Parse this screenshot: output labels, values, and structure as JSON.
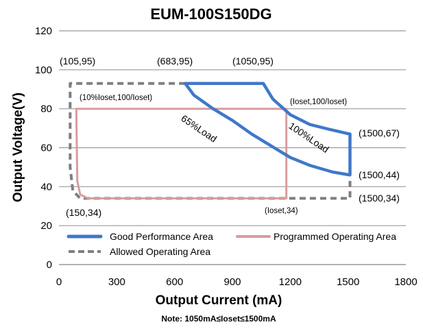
{
  "chart_data": {
    "type": "line",
    "title": "EUM-100S150DG",
    "xlabel": "Output Current (mA)",
    "ylabel": "Output Voltage(V)",
    "xlim": [
      0,
      1800
    ],
    "ylim": [
      0,
      120
    ],
    "x_ticks": [
      "0",
      "300",
      "600",
      "900",
      "1200",
      "1500",
      "1800"
    ],
    "y_ticks": [
      "0",
      "20",
      "40",
      "60",
      "80",
      "100",
      "120"
    ],
    "grid": "horizontal",
    "legend_placement": "bottom",
    "series": [
      {
        "name": "Good Performance Area",
        "color": "#3f78c9",
        "style": "solid",
        "points": [
          [
            655,
            93
          ],
          [
            1060,
            93
          ],
          [
            1110,
            85
          ],
          [
            1200,
            77
          ],
          [
            1300,
            72
          ],
          [
            1400,
            69.5
          ],
          [
            1510,
            67
          ],
          [
            1510,
            46
          ],
          [
            1420,
            47.5
          ],
          [
            1300,
            51
          ],
          [
            1200,
            55
          ],
          [
            1100,
            61
          ],
          [
            1000,
            67
          ],
          [
            900,
            74
          ],
          [
            800,
            80
          ],
          [
            700,
            87
          ],
          [
            655,
            93
          ]
        ]
      },
      {
        "name": "Programmed Operating Area",
        "color": "#d99c9c",
        "style": "solid",
        "points": [
          [
            90,
            80
          ],
          [
            1180,
            80
          ],
          [
            1180,
            34
          ],
          [
            150,
            34
          ],
          [
            110,
            36
          ],
          [
            95,
            43
          ],
          [
            90,
            80
          ]
        ]
      },
      {
        "name": "Allowed Operating Area",
        "color": "#7f7f7f",
        "style": "dashed",
        "points": [
          [
            655,
            93
          ],
          [
            58,
            93
          ],
          [
            58,
            50
          ],
          [
            72,
            38
          ],
          [
            110,
            34
          ],
          [
            1510,
            34
          ],
          [
            1510,
            44
          ]
        ]
      }
    ],
    "annotations": [
      {
        "text": "(105,95)",
        "x": 105,
        "y": 95
      },
      {
        "text": "(683,95)",
        "x": 683,
        "y": 95
      },
      {
        "text": "(1050,95)",
        "x": 1050,
        "y": 95
      },
      {
        "text": "(10%Ioset,100/Ioset)",
        "x": 110,
        "y": 83
      },
      {
        "text": "(Ioset,100/Ioset)",
        "x": 1180,
        "y": 80
      },
      {
        "text": "(1500,67)",
        "x": 1500,
        "y": 67
      },
      {
        "text": "(1500,44)",
        "x": 1500,
        "y": 44
      },
      {
        "text": "(1500,34)",
        "x": 1500,
        "y": 34
      },
      {
        "text": "(150,34)",
        "x": 150,
        "y": 34
      },
      {
        "text": "(Ioset,34)",
        "x": 1180,
        "y": 34
      },
      {
        "text": "65%Load",
        "x": 850,
        "y": 66
      },
      {
        "text": "100%Load",
        "x": 1340,
        "y": 61
      }
    ]
  },
  "note": "Note:  1050mA≤Ioset≤1500mA"
}
